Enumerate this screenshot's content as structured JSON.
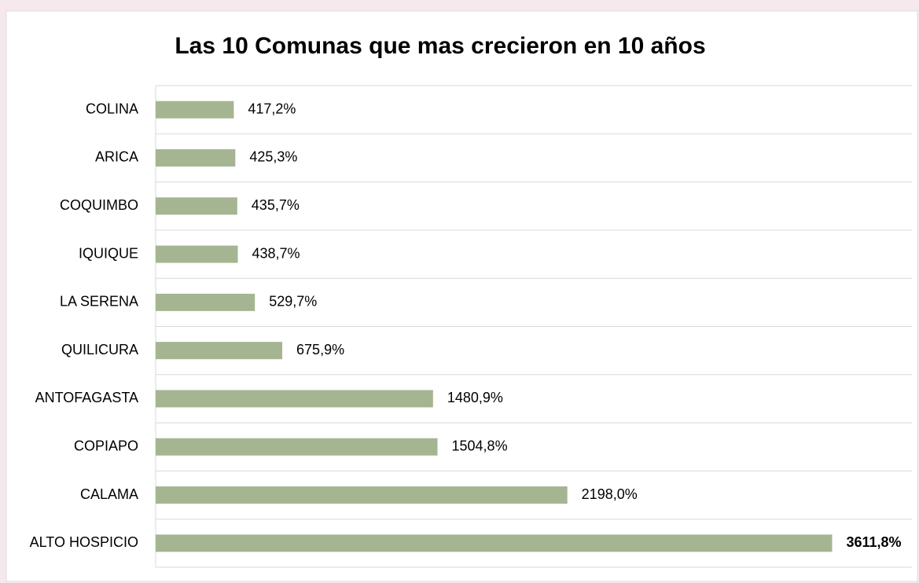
{
  "chart_data": {
    "type": "bar",
    "orientation": "horizontal",
    "title": "Las 10 Comunas que mas crecieron en 10 años",
    "categories": [
      "COLINA",
      "ARICA",
      "COQUIMBO",
      "IQUIQUE",
      "LA SERENA",
      "QUILICURA",
      "ANTOFAGASTA",
      "COPIAPO",
      "CALAMA",
      "ALTO HOSPICIO"
    ],
    "values": [
      417.2,
      425.3,
      435.7,
      438.7,
      529.7,
      675.9,
      1480.9,
      1504.8,
      2198.0,
      3611.8
    ],
    "value_labels": [
      "417,2%",
      "425,3%",
      "435,7%",
      "438,7%",
      "529,7%",
      "675,9%",
      "1480,9%",
      "1504,8%",
      "2198,0%",
      "3611,8%"
    ],
    "color": "#a5b592",
    "xlim": [
      0,
      4000
    ],
    "grid": true
  }
}
